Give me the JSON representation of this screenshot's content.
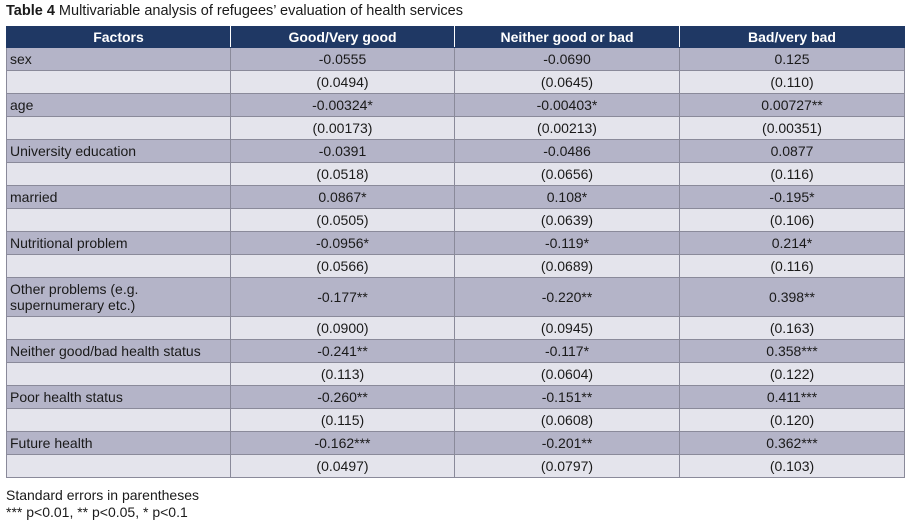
{
  "caption": {
    "label": "Table 4",
    "text": "Multivariable analysis of refugees’ evaluation of health services"
  },
  "table": {
    "headers": [
      "Factors",
      "Good/Very good",
      "Neither good or bad",
      "Bad/very bad"
    ],
    "rows": [
      {
        "factor": "sex",
        "coef": [
          "-0.0555",
          "-0.0690",
          "0.125"
        ],
        "se": [
          "(0.0494)",
          "(0.0645)",
          "(0.110)"
        ]
      },
      {
        "factor": "age",
        "coef": [
          "-0.00324*",
          "-0.00403*",
          "0.00727**"
        ],
        "se": [
          "(0.00173)",
          "(0.00213)",
          "(0.00351)"
        ]
      },
      {
        "factor": "University education",
        "coef": [
          "-0.0391",
          "-0.0486",
          "0.0877"
        ],
        "se": [
          "(0.0518)",
          "(0.0656)",
          "(0.116)"
        ]
      },
      {
        "factor": "married",
        "coef": [
          "0.0867*",
          "0.108*",
          "-0.195*"
        ],
        "se": [
          "(0.0505)",
          "(0.0639)",
          "(0.106)"
        ]
      },
      {
        "factor": "Nutritional problem",
        "coef": [
          "-0.0956*",
          "-0.119*",
          "0.214*"
        ],
        "se": [
          "(0.0566)",
          "(0.0689)",
          "(0.116)"
        ]
      },
      {
        "factor": "Other problems (e.g. supernumerary etc.)",
        "coef": [
          "-0.177**",
          "-0.220**",
          "0.398**"
        ],
        "se": [
          "(0.0900)",
          "(0.0945)",
          "(0.163)"
        ]
      },
      {
        "factor": "Neither good/bad health status",
        "coef": [
          "-0.241**",
          "-0.117*",
          "0.358***"
        ],
        "se": [
          "(0.113)",
          "(0.0604)",
          "(0.122)"
        ]
      },
      {
        "factor": "Poor health status",
        "coef": [
          "-0.260**",
          "-0.151**",
          "0.411***"
        ],
        "se": [
          "(0.115)",
          "(0.0608)",
          "(0.120)"
        ]
      },
      {
        "factor": "Future health",
        "coef": [
          "-0.162***",
          "-0.201**",
          "0.362***"
        ],
        "se": [
          "(0.0497)",
          "(0.0797)",
          "(0.103)"
        ]
      }
    ]
  },
  "notes": {
    "line1": "Standard errors in parentheses",
    "line2": "*** p<0.01, ** p<0.05, * p<0.1"
  },
  "colors": {
    "header_bg": "#1f3864",
    "coef_row_bg": "#b4b4c8",
    "se_row_bg": "#e4e4ec"
  }
}
